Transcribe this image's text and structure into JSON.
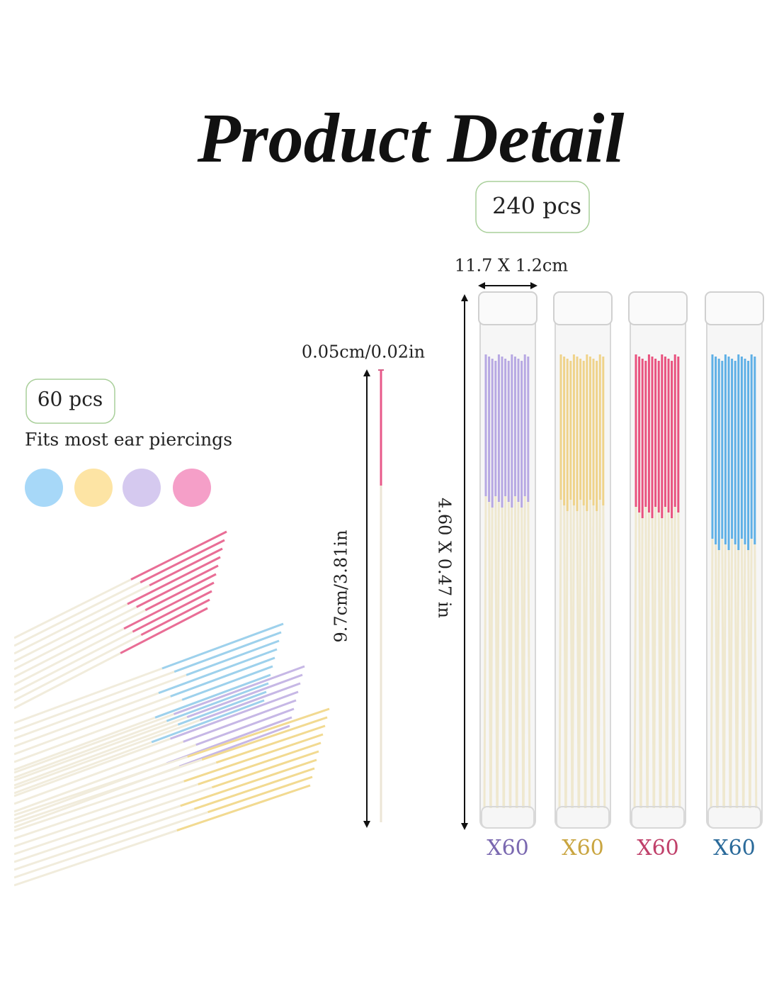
{
  "title": "Product Detail",
  "total_badge": "240 pcs",
  "tube_size": "11.7 X 1.2cm",
  "thread_diameter": "0.05cm/0.02in",
  "pack_badge": "60 pcs",
  "fit_note": "Fits most ear piercings",
  "thread_length": "9.7cm/3.81in",
  "tube_length": "4.60 X 0.47 in",
  "tubes": [
    {
      "label": "X60"
    },
    {
      "label": "X60"
    },
    {
      "label": "X60"
    },
    {
      "label": "X60"
    }
  ]
}
